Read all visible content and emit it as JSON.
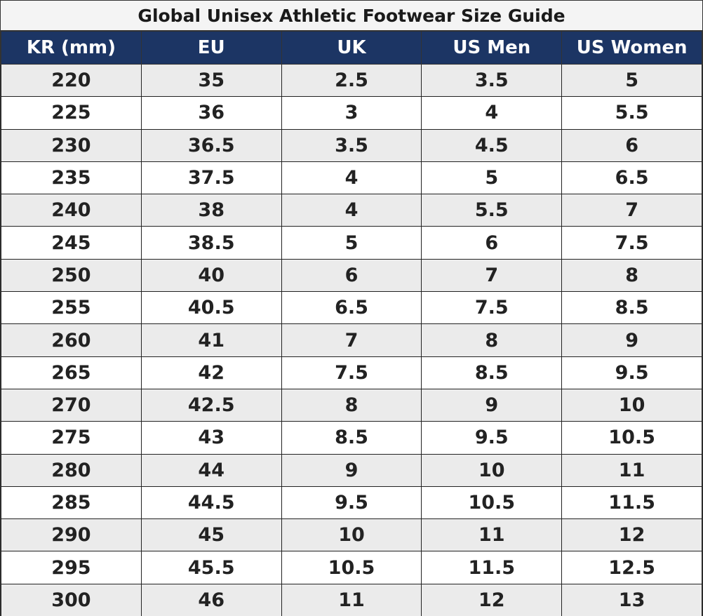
{
  "title": "Global Unisex Athletic Footwear Size Guide",
  "table": {
    "headers": [
      "KR (mm)",
      "EU",
      "UK",
      "US Men",
      "US Women"
    ],
    "rows": [
      [
        "220",
        "35",
        "2.5",
        "3.5",
        "5"
      ],
      [
        "225",
        "36",
        "3",
        "4",
        "5.5"
      ],
      [
        "230",
        "36.5",
        "3.5",
        "4.5",
        "6"
      ],
      [
        "235",
        "37.5",
        "4",
        "5",
        "6.5"
      ],
      [
        "240",
        "38",
        "4",
        "5.5",
        "7"
      ],
      [
        "245",
        "38.5",
        "5",
        "6",
        "7.5"
      ],
      [
        "250",
        "40",
        "6",
        "7",
        "8"
      ],
      [
        "255",
        "40.5",
        "6.5",
        "7.5",
        "8.5"
      ],
      [
        "260",
        "41",
        "7",
        "8",
        "9"
      ],
      [
        "265",
        "42",
        "7.5",
        "8.5",
        "9.5"
      ],
      [
        "270",
        "42.5",
        "8",
        "9",
        "10"
      ],
      [
        "275",
        "43",
        "8.5",
        "9.5",
        "10.5"
      ],
      [
        "280",
        "44",
        "9",
        "10",
        "11"
      ],
      [
        "285",
        "44.5",
        "9.5",
        "10.5",
        "11.5"
      ],
      [
        "290",
        "45",
        "10",
        "11",
        "12"
      ],
      [
        "295",
        "45.5",
        "10.5",
        "11.5",
        "12.5"
      ],
      [
        "300",
        "46",
        "11",
        "12",
        "13"
      ]
    ]
  }
}
